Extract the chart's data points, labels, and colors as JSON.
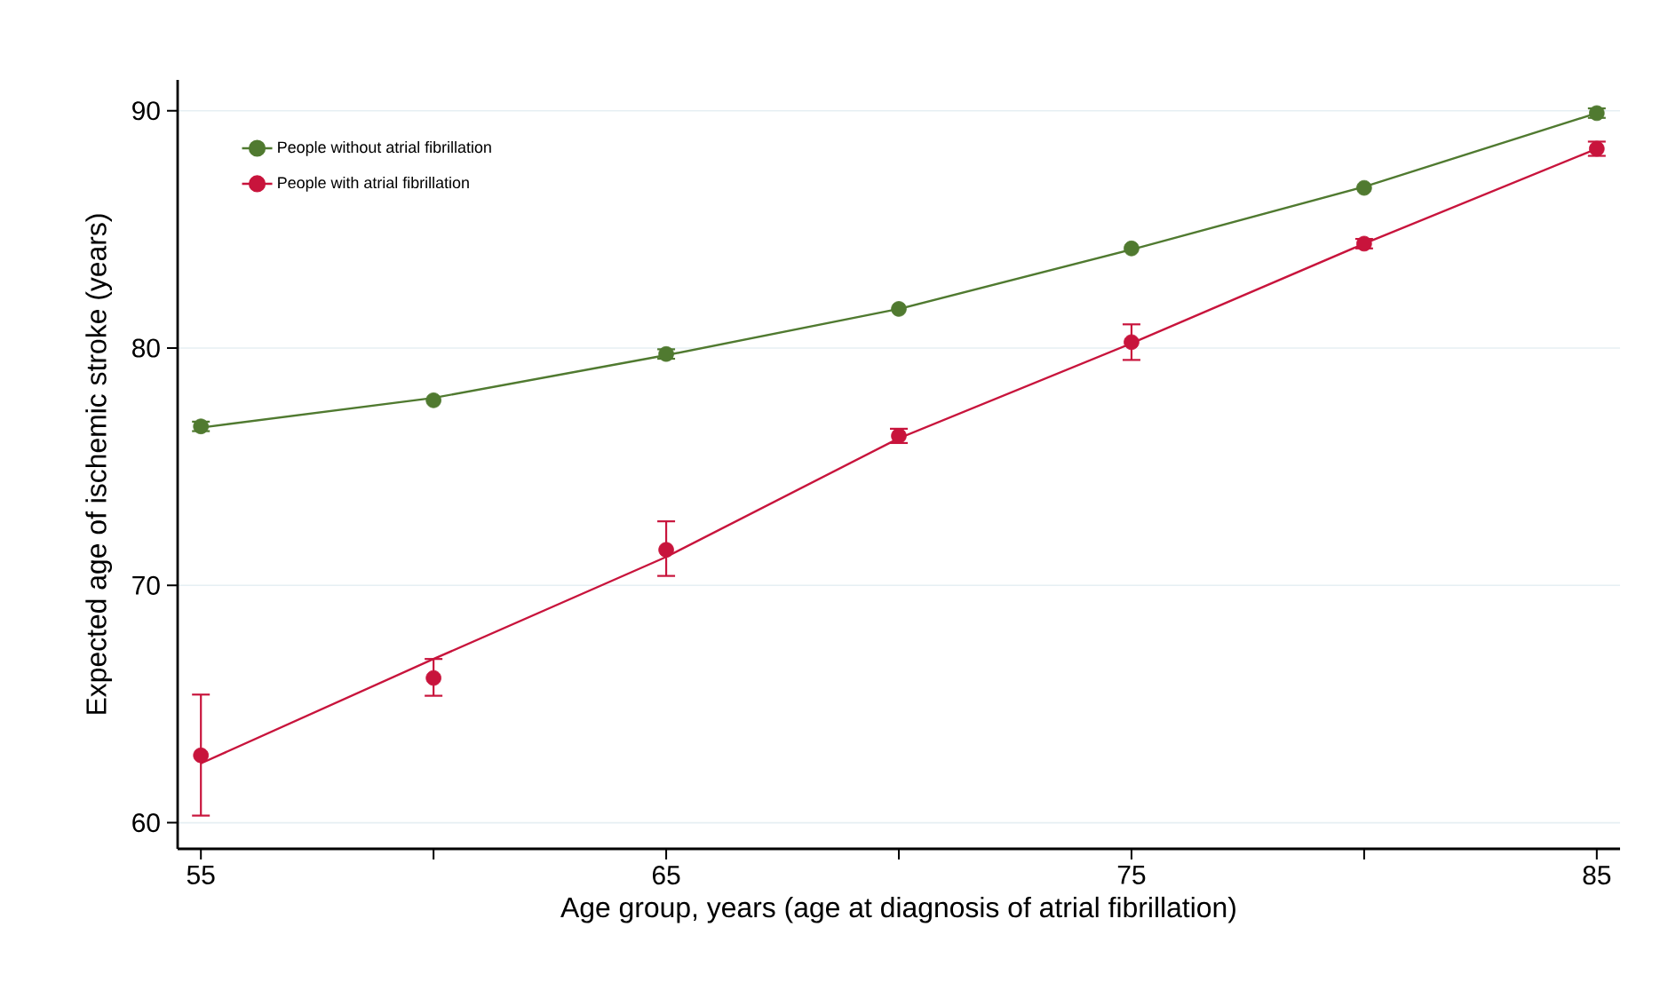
{
  "chart_data": {
    "type": "scatter",
    "xlabel": "Age group, years (age at diagnosis of atrial fibrillation)",
    "ylabel": "Expected age of ischemic stroke (years)",
    "xlim": [
      54.5,
      85.5
    ],
    "ylim": [
      58.9,
      91.3
    ],
    "xticks": [
      55,
      {
        "value": 60,
        "label": null
      },
      65,
      {
        "value": 70,
        "label": null
      },
      75,
      {
        "value": 80,
        "label": null
      },
      85
    ],
    "yticks": [
      60,
      70,
      80,
      90
    ],
    "grid": "y",
    "legend": "top left",
    "marker": "circle",
    "series": [
      {
        "name": "People without atrial fibrillation",
        "color": "#507a30",
        "x": [
          55,
          60,
          65,
          70,
          75,
          80,
          85
        ],
        "values": [
          76.7,
          77.8,
          79.75,
          81.65,
          84.2,
          86.75,
          89.9
        ],
        "errors": [
          [
            76.5,
            76.9
          ],
          null,
          [
            79.55,
            79.95
          ],
          null,
          null,
          null,
          [
            89.7,
            90.1
          ]
        ]
      },
      {
        "color": "#507a30",
        "type": "line",
        "line_style": "solid",
        "marker": "none",
        "x": [
          55,
          60,
          65,
          70,
          75,
          80,
          85
        ],
        "values": [
          76.65,
          77.9,
          79.7,
          81.65,
          84.15,
          86.8,
          89.9
        ]
      },
      {
        "name": "People with atrial fibrillation",
        "color": "#c8143c",
        "x": [
          55,
          60,
          65,
          70,
          75,
          80,
          85
        ],
        "values": [
          62.84,
          66.1,
          71.5,
          76.3,
          80.25,
          84.4,
          88.4
        ],
        "errors": [
          [
            60.3,
            65.4
          ],
          [
            65.35,
            66.9
          ],
          [
            70.4,
            72.7
          ],
          [
            76.0,
            76.6
          ],
          [
            79.5,
            81.0
          ],
          [
            84.2,
            84.6
          ],
          [
            88.1,
            88.7
          ]
        ]
      },
      {
        "color": "#c8143c",
        "type": "line",
        "line_style": "solid",
        "marker": "none",
        "x": [
          55,
          60,
          65,
          70,
          75,
          80,
          85
        ],
        "values": [
          62.5,
          66.9,
          71.2,
          76.2,
          80.2,
          84.4,
          88.4
        ]
      }
    ]
  }
}
